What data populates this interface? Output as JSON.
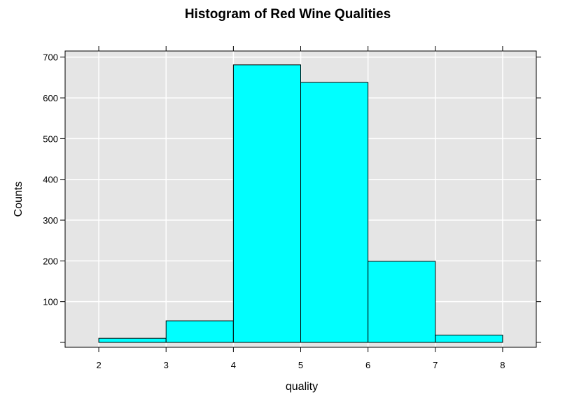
{
  "chart_data": {
    "type": "bar",
    "title": "Histogram of Red Wine Qualities",
    "xlabel": "quality",
    "ylabel": "Counts",
    "bins": [
      {
        "from": 2,
        "to": 3,
        "count": 10
      },
      {
        "from": 3,
        "to": 4,
        "count": 53
      },
      {
        "from": 4,
        "to": 5,
        "count": 681
      },
      {
        "from": 5,
        "to": 6,
        "count": 638
      },
      {
        "from": 6,
        "to": 7,
        "count": 199
      },
      {
        "from": 7,
        "to": 8,
        "count": 18
      }
    ],
    "x_ticks": [
      "2",
      "3",
      "4",
      "5",
      "6",
      "7",
      "8"
    ],
    "y_ticks": [
      "100",
      "200",
      "300",
      "400",
      "500",
      "600",
      "700"
    ],
    "xlim": [
      1.5,
      8.5
    ],
    "ylim": [
      -12,
      715
    ],
    "grid": true,
    "colors": {
      "bar_fill": "#00ffff",
      "bar_stroke": "#000000",
      "panel_background": "#e5e5e5",
      "grid": "#ffffff"
    }
  }
}
